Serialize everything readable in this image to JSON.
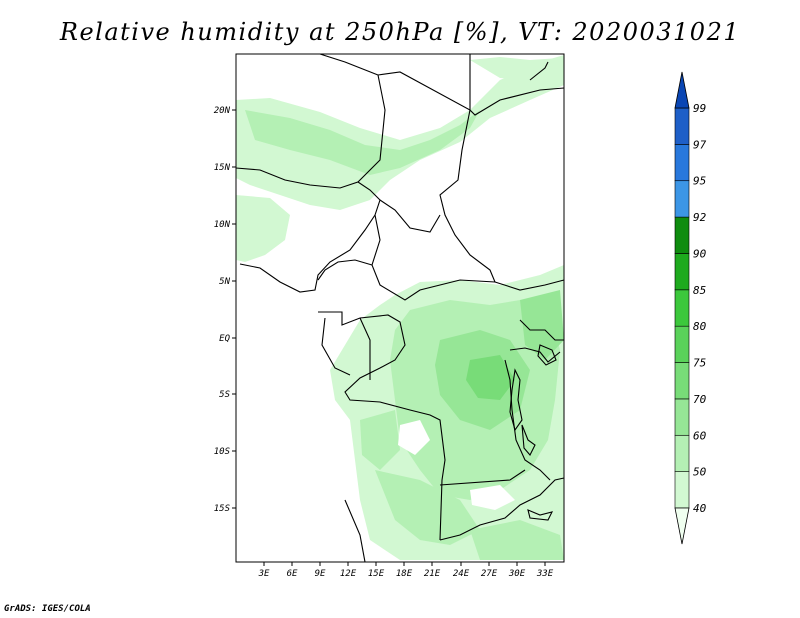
{
  "title": "Relative humidity at 250hPa [%], VT: 2020031021",
  "credit": "GrADS: IGES/COLA",
  "map": {
    "lat_labels": [
      "20N",
      "15N",
      "10N",
      "5N",
      "EQ",
      "5S",
      "10S",
      "15S"
    ],
    "lon_labels": [
      "3E",
      "6E",
      "9E",
      "12E",
      "15E",
      "18E",
      "21E",
      "24E",
      "27E",
      "30E",
      "33E"
    ]
  },
  "colorbar": {
    "levels": [
      "40",
      "50",
      "60",
      "70",
      "75",
      "80",
      "85",
      "90",
      "92",
      "95",
      "97",
      "99"
    ],
    "colors": [
      "#f0fff0",
      "#d2f8d2",
      "#b4f0b4",
      "#96e696",
      "#78dc78",
      "#5ad25a",
      "#3cc83c",
      "#1eaa1e",
      "#0f8c0f",
      "#3c96e6",
      "#2878dc",
      "#1e5fc8",
      "#0a46b4"
    ]
  }
}
